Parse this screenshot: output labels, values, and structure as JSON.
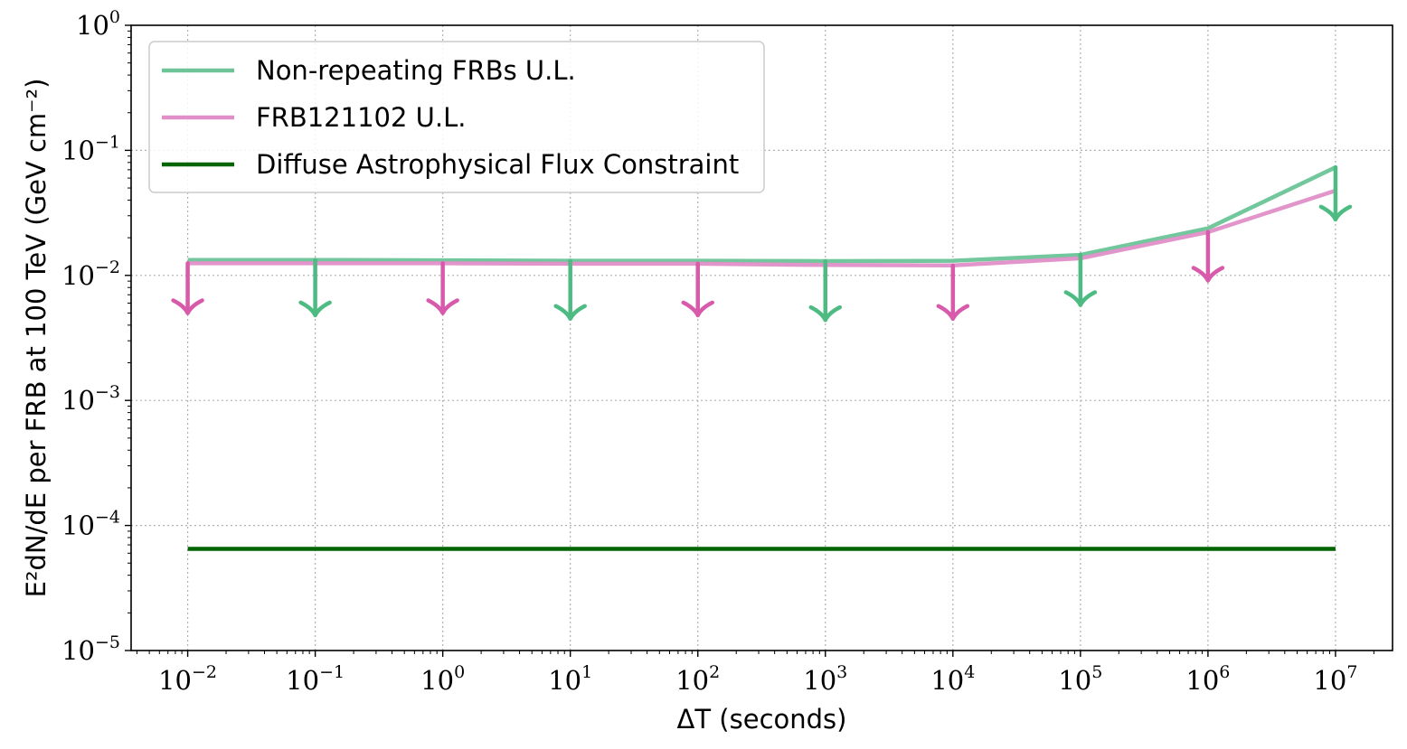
{
  "chart_data": {
    "type": "line",
    "xlabel": "ΔT (seconds)",
    "ylabel": "E²dN/dE per FRB at 100 TeV (GeV cm⁻²)",
    "xscale": "log",
    "yscale": "log",
    "xlim": [
      0.0036,
      28000000.0
    ],
    "ylim": [
      1e-05,
      1
    ],
    "grid": true,
    "legend_position": "top-left",
    "x_ticks": [
      {
        "base": "10",
        "exp": "−2"
      },
      {
        "base": "10",
        "exp": "−1"
      },
      {
        "base": "10",
        "exp": "0"
      },
      {
        "base": "10",
        "exp": "1"
      },
      {
        "base": "10",
        "exp": "2"
      },
      {
        "base": "10",
        "exp": "3"
      },
      {
        "base": "10",
        "exp": "4"
      },
      {
        "base": "10",
        "exp": "5"
      },
      {
        "base": "10",
        "exp": "6"
      },
      {
        "base": "10",
        "exp": "7"
      }
    ],
    "y_ticks": [
      {
        "base": "10",
        "exp": "−5"
      },
      {
        "base": "10",
        "exp": "−4"
      },
      {
        "base": "10",
        "exp": "−3"
      },
      {
        "base": "10",
        "exp": "−2"
      },
      {
        "base": "10",
        "exp": "−1"
      },
      {
        "base": "10",
        "exp": "0"
      }
    ],
    "x": [
      0.01,
      0.1,
      1,
      10,
      100,
      1000,
      10000,
      100000,
      1000000,
      10000000
    ],
    "series": [
      {
        "name": "Non-repeating FRBs U.L.",
        "color": "#6cc497",
        "values": [
          0.0133,
          0.0133,
          0.0132,
          0.0131,
          0.0131,
          0.013,
          0.0131,
          0.0146,
          0.0238,
          0.0732
        ],
        "arrow_tips": [
          null,
          0.0048,
          null,
          0.0045,
          null,
          0.0044,
          null,
          0.0058,
          null,
          0.028
        ]
      },
      {
        "name": "FRB121102 U.L.",
        "color": "#e08fc8",
        "values": [
          0.0125,
          0.0125,
          0.0125,
          0.0124,
          0.0124,
          0.0121,
          0.012,
          0.0137,
          0.0222,
          0.0476
        ],
        "arrow_tips": [
          0.005,
          null,
          0.005,
          null,
          0.0048,
          null,
          0.0045,
          null,
          0.0091,
          null
        ]
      },
      {
        "name": "Diffuse Astrophysical Flux Constraint",
        "color": "#006400",
        "values": [
          6.5e-05,
          6.5e-05,
          6.5e-05,
          6.5e-05,
          6.5e-05,
          6.5e-05,
          6.5e-05,
          6.5e-05,
          6.5e-05,
          6.5e-05
        ]
      }
    ]
  }
}
